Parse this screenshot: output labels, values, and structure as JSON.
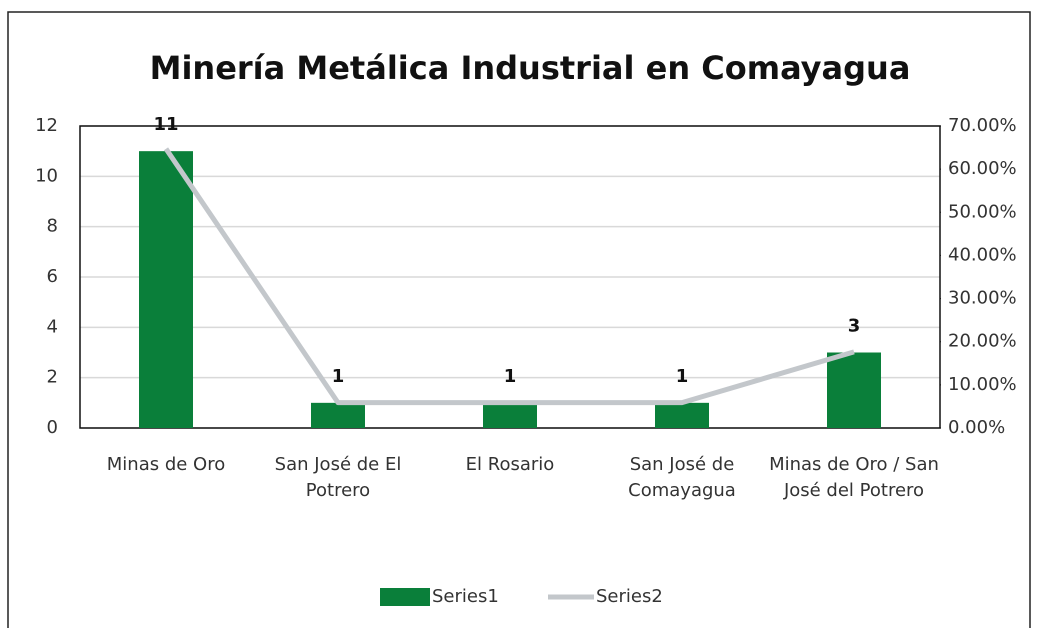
{
  "chart_data": {
    "type": "bar",
    "title": "Minería Metálica Industrial en Comayagua",
    "categories": [
      "Minas de Oro",
      "San José de El Potrero",
      "El Rosario",
      "San José de Comayagua",
      "Minas de Oro / San José del Potrero"
    ],
    "series": [
      {
        "name": "Series1",
        "type": "bar",
        "color": "#0a7f3a",
        "values": [
          11,
          1,
          1,
          1,
          3
        ]
      },
      {
        "name": "Series2",
        "type": "line",
        "axis": "y2",
        "color": "#c3c7cb",
        "values": [
          64.71,
          5.88,
          5.88,
          5.88,
          17.65
        ]
      }
    ],
    "ylim": [
      0,
      12
    ],
    "yticks": [
      0,
      2,
      4,
      6,
      8,
      10,
      12
    ],
    "y2lim": [
      0,
      70
    ],
    "y2ticks": [
      {
        "value": 0,
        "label": "0.00%"
      },
      {
        "value": 10,
        "label": "10.00%"
      },
      {
        "value": 20,
        "label": "20.00%"
      },
      {
        "value": 30,
        "label": "30.00%"
      },
      {
        "value": 40,
        "label": "40.00%"
      },
      {
        "value": 50,
        "label": "50.00%"
      },
      {
        "value": 60,
        "label": "60.00%"
      },
      {
        "value": 70,
        "label": "70.00%"
      }
    ],
    "grid": true,
    "legend": "bottom"
  }
}
